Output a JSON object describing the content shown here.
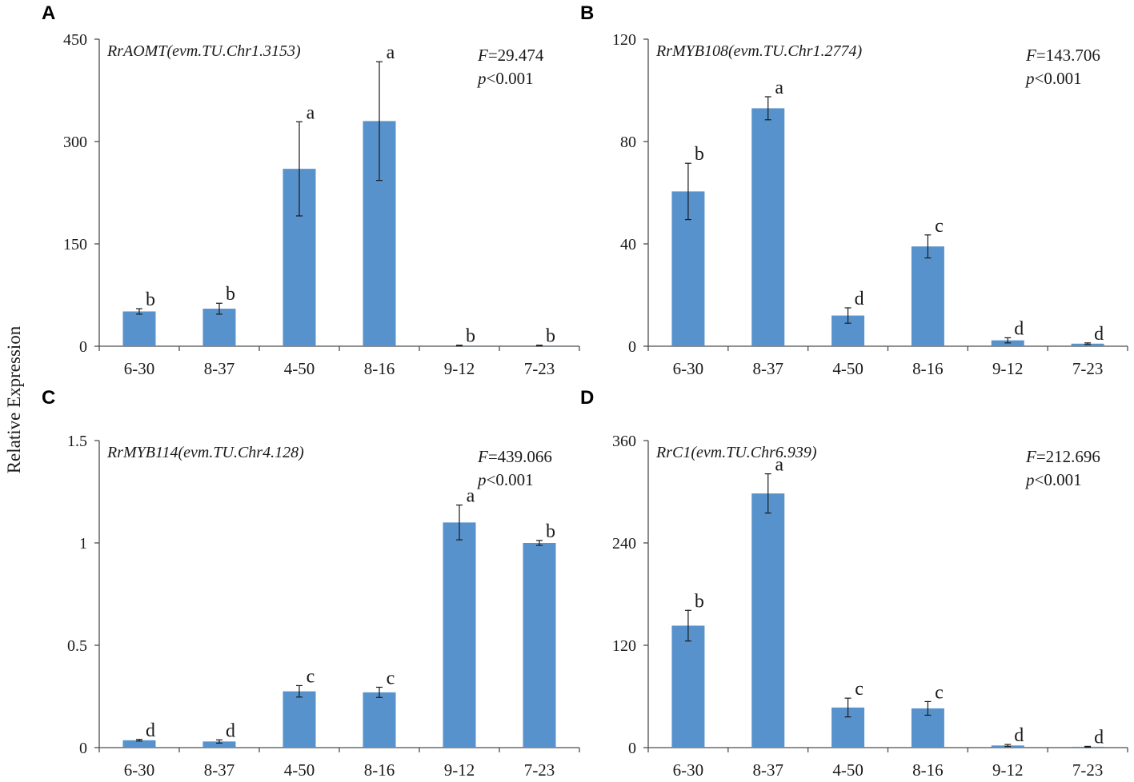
{
  "y_axis_label": "Relative Expression",
  "colors": {
    "bar": "#5892cc",
    "axis": "#4d4d4d",
    "error": "#1a1a1a"
  },
  "chart_data": [
    {
      "panel": "A",
      "type": "bar",
      "title_gene": "RrAOMT",
      "title_id": "(evm.TU.Chr1.3153)",
      "stat_f_label": "F",
      "stat_f_value": "=29.474",
      "stat_p_label": "p",
      "stat_p_value": "<0.001",
      "categories": [
        "6-30",
        "8-37",
        "4-50",
        "8-16",
        "9-12",
        "7-23"
      ],
      "values": [
        51,
        55,
        260,
        330,
        1,
        1
      ],
      "errors": [
        4,
        8,
        69,
        87,
        0.5,
        0.5
      ],
      "letters": [
        "b",
        "b",
        "a",
        "a",
        "b",
        "b"
      ],
      "ylim": [
        0,
        450
      ],
      "yticks": [
        0,
        150,
        300,
        450
      ],
      "ytick_labels": [
        "0",
        "150",
        "300",
        "450"
      ]
    },
    {
      "panel": "B",
      "type": "bar",
      "title_gene": "RrMYB108",
      "title_id": "(evm.TU.Chr1.2774)",
      "stat_f_label": "F",
      "stat_f_value": "=143.706",
      "stat_p_label": "p",
      "stat_p_value": "<0.001",
      "categories": [
        "6-30",
        "8-37",
        "4-50",
        "8-16",
        "9-12",
        "7-23"
      ],
      "values": [
        60.5,
        93,
        12,
        39,
        2.3,
        1
      ],
      "errors": [
        11,
        4.5,
        3,
        4.5,
        1,
        0.3
      ],
      "letters": [
        "b",
        "a",
        "d",
        "c",
        "d",
        "d"
      ],
      "ylim": [
        0,
        120
      ],
      "yticks": [
        0,
        40,
        80,
        120
      ],
      "ytick_labels": [
        "0",
        "40",
        "80",
        "120"
      ]
    },
    {
      "panel": "C",
      "type": "bar",
      "title_gene": "RrMYB114",
      "title_id": "(evm.TU.Chr4.128)",
      "stat_f_label": "F",
      "stat_f_value": "=439.066",
      "stat_p_label": "p",
      "stat_p_value": "<0.001",
      "categories": [
        "6-30",
        "8-37",
        "4-50",
        "8-16",
        "9-12",
        "7-23"
      ],
      "values": [
        0.036,
        0.03,
        0.275,
        0.27,
        1.1,
        1.0
      ],
      "errors": [
        0.004,
        0.008,
        0.028,
        0.025,
        0.085,
        0.012
      ],
      "letters": [
        "d",
        "d",
        "c",
        "c",
        "a",
        "b"
      ],
      "ylim": [
        0,
        1.5
      ],
      "yticks": [
        0,
        0.5,
        1,
        1.5
      ],
      "ytick_labels": [
        "0",
        "0.5",
        "1",
        "1.5"
      ]
    },
    {
      "panel": "D",
      "type": "bar",
      "title_gene": "RrC1",
      "title_id": "(evm.TU.Chr6.939)",
      "stat_f_label": "F",
      "stat_f_value": "=212.696",
      "stat_p_label": "p",
      "stat_p_value": "<0.001",
      "categories": [
        "6-30",
        "8-37",
        "4-50",
        "8-16",
        "9-12",
        "7-23"
      ],
      "values": [
        143,
        298,
        47,
        46,
        2.5,
        1
      ],
      "errors": [
        18,
        23,
        11,
        8,
        1.2,
        0.5
      ],
      "letters": [
        "b",
        "a",
        "c",
        "c",
        "d",
        "d"
      ],
      "ylim": [
        0,
        360
      ],
      "yticks": [
        0,
        120,
        240,
        360
      ],
      "ytick_labels": [
        "0",
        "120",
        "240",
        "360"
      ]
    }
  ]
}
